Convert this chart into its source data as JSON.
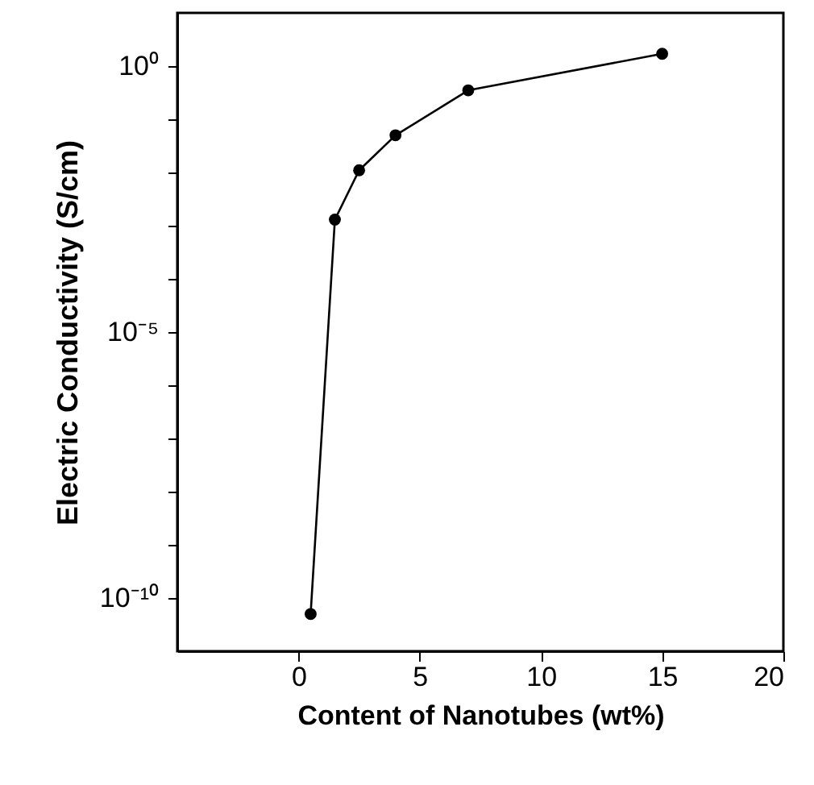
{
  "chart_data": {
    "type": "line",
    "xlabel": "Content of Nanotubes (wt%)",
    "ylabel": "Electric Conductivity (S/cm)",
    "x": [
      0.5,
      1.5,
      2.5,
      4,
      7,
      15
    ],
    "series": [
      {
        "color": "#000000",
        "values": [
          5e-11,
          0.0013,
          0.011,
          0.05,
          0.35,
          1.7
        ]
      }
    ],
    "log": "y",
    "xlim": [
      -5,
      20
    ],
    "xticks": [
      0,
      5,
      10,
      15,
      20
    ],
    "ylim": [
      1e-11,
      10
    ],
    "yticks": [
      {
        "value": 1e-10,
        "label": "10⁻¹⁰"
      },
      {
        "value": 1e-09,
        "label": null
      },
      {
        "value": 1e-08,
        "label": null
      },
      {
        "value": 1e-07,
        "label": null
      },
      {
        "value": 1e-06,
        "label": null
      },
      {
        "value": 1e-05,
        "label": "10⁻⁵"
      },
      {
        "value": 0.0001,
        "label": null
      },
      {
        "value": 0.001,
        "label": null
      },
      {
        "value": 0.01,
        "label": null
      },
      {
        "value": 0.1,
        "label": null
      },
      {
        "value": 1,
        "label": "10⁰"
      }
    ],
    "grid": false,
    "marker": "circle",
    "line_style": "solid"
  }
}
